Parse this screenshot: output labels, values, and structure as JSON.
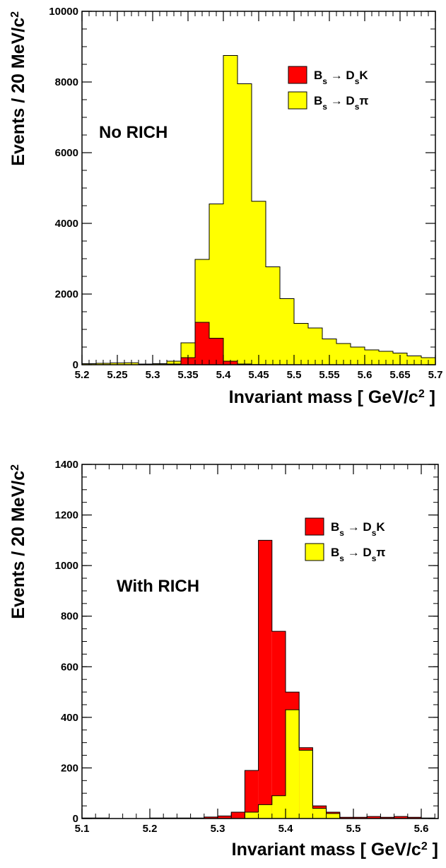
{
  "colors": {
    "Bs_to_DsK": "#ff0000",
    "Bs_to_Dspi": "#ffff00",
    "axis": "#000000"
  },
  "chart_data": [
    {
      "type": "bar",
      "stacked": true,
      "panel_label": "No RICH",
      "bin_edges": [
        5.2,
        5.22,
        5.24,
        5.26,
        5.28,
        5.3,
        5.32,
        5.34,
        5.36,
        5.38,
        5.4,
        5.42,
        5.44,
        5.46,
        5.48,
        5.5,
        5.52,
        5.54,
        5.56,
        5.58,
        5.6,
        5.62,
        5.64,
        5.66,
        5.68,
        5.7
      ],
      "series": [
        {
          "name": "B_s → D_sK",
          "color": "#ff0000",
          "values": [
            0,
            0,
            0,
            0,
            0,
            5,
            20,
            200,
            1200,
            750,
            100,
            20,
            5,
            0,
            0,
            0,
            0,
            0,
            0,
            0,
            0,
            0,
            0,
            0,
            0
          ]
        },
        {
          "name": "B_s → D_sπ",
          "color": "#ffff00",
          "values": [
            30,
            40,
            50,
            55,
            20,
            25,
            80,
            420,
            1780,
            3800,
            8650,
            7930,
            4620,
            2770,
            1870,
            1170,
            1040,
            730,
            600,
            500,
            420,
            380,
            330,
            250,
            200
          ]
        }
      ],
      "xlim": [
        5.2,
        5.7
      ],
      "ylim": [
        0,
        10000
      ],
      "xticks": [
        "5.2",
        "5.25",
        "5.3",
        "5.35",
        "5.4",
        "5.45",
        "5.5",
        "5.55",
        "5.6",
        "5.65",
        "5.7"
      ],
      "xtick_values": [
        5.2,
        5.25,
        5.3,
        5.35,
        5.4,
        5.45,
        5.5,
        5.55,
        5.6,
        5.65,
        5.7
      ],
      "yticks": [
        "0",
        "2000",
        "4000",
        "6000",
        "8000",
        "10000"
      ],
      "ytick_values": [
        0,
        2000,
        4000,
        6000,
        8000,
        10000
      ],
      "xlabel": "Invariant mass  [ GeV/c² ]",
      "ylabel": "Events  /  20 MeV/c²",
      "legend": [
        "B_s → D_sK",
        "B_s → D_sπ"
      ],
      "legend_position": "top-right"
    },
    {
      "type": "bar",
      "stacked": false,
      "panel_label": "With RICH",
      "bin_edges": [
        5.1,
        5.12,
        5.14,
        5.16,
        5.18,
        5.2,
        5.22,
        5.24,
        5.26,
        5.28,
        5.3,
        5.32,
        5.34,
        5.36,
        5.38,
        5.4,
        5.42,
        5.44,
        5.46,
        5.48,
        5.5,
        5.52,
        5.54,
        5.56,
        5.58,
        5.6,
        5.62
      ],
      "series": [
        {
          "name": "B_s → D_sK",
          "color": "#ff0000",
          "values": [
            2,
            2,
            0,
            0,
            0,
            2,
            2,
            2,
            2,
            6,
            10,
            25,
            190,
            1100,
            740,
            500,
            280,
            50,
            25,
            5,
            5,
            8,
            5,
            8,
            5,
            2
          ]
        },
        {
          "name": "B_s → D_sπ",
          "color": "#ffff00",
          "values": [
            0,
            0,
            0,
            0,
            0,
            0,
            0,
            0,
            0,
            0,
            0,
            0,
            25,
            55,
            90,
            430,
            270,
            40,
            20,
            0,
            0,
            0,
            0,
            0,
            0,
            0
          ]
        }
      ],
      "xlim": [
        5.1,
        5.625
      ],
      "ylim": [
        0,
        1400
      ],
      "xticks": [
        "5.1",
        "5.2",
        "5.3",
        "5.4",
        "5.5",
        "5.6"
      ],
      "xtick_values": [
        5.1,
        5.2,
        5.3,
        5.4,
        5.5,
        5.6
      ],
      "yticks": [
        "0",
        "200",
        "400",
        "600",
        "800",
        "1000",
        "1200",
        "1400"
      ],
      "ytick_values": [
        0,
        200,
        400,
        600,
        800,
        1000,
        1200,
        1400
      ],
      "xlabel": "Invariant mass  [ GeV/c² ]",
      "ylabel": "Events  /  20 MeV/c²",
      "legend": [
        "B_s → D_sK",
        "B_s → D_sπ"
      ],
      "legend_position": "top-right"
    }
  ]
}
